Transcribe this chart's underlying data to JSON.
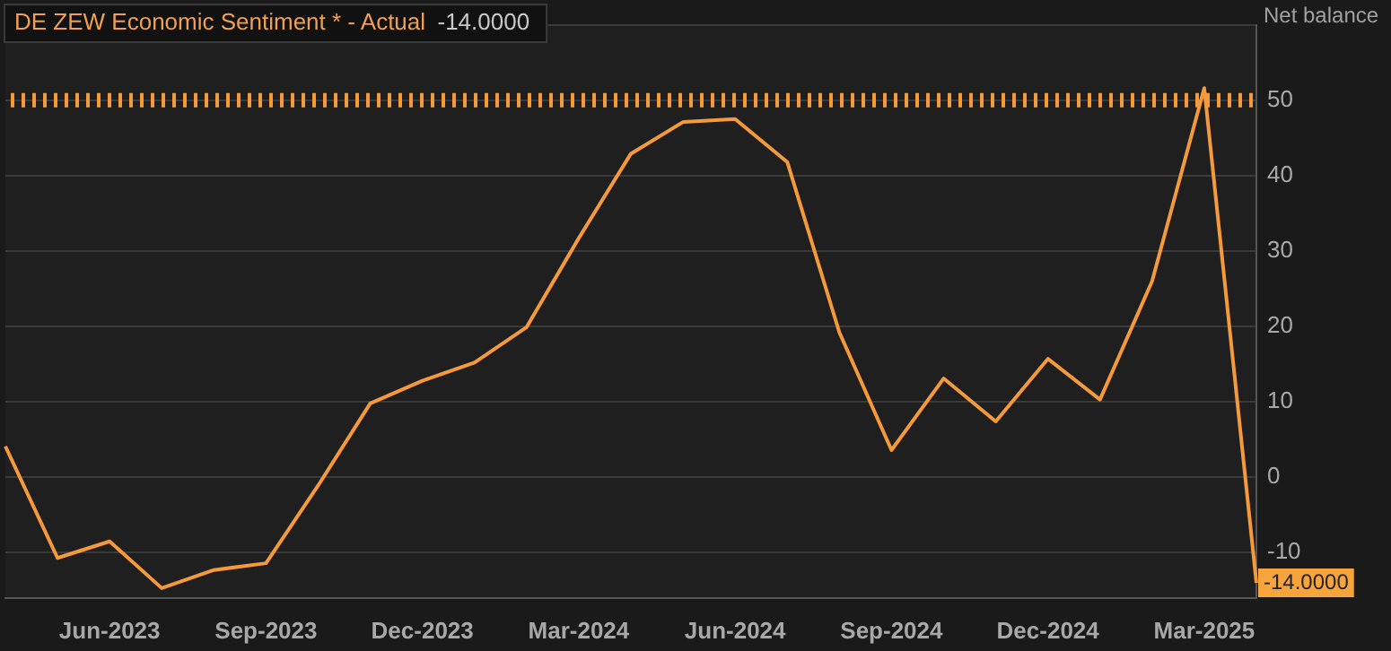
{
  "chart_data": {
    "type": "line",
    "title": "DE ZEW Economic Sentiment * - Actual",
    "subtitle": "-14.0000",
    "ylabel": "Net balance",
    "categories": [
      null,
      null,
      "Jun-2023",
      null,
      null,
      "Sep-2023",
      null,
      null,
      "Dec-2023",
      null,
      null,
      "Mar-2024",
      null,
      null,
      "Jun-2024",
      null,
      null,
      "Sep-2024",
      null,
      null,
      "Dec-2024",
      null,
      null,
      "Mar-2025",
      null
    ],
    "series": [
      {
        "color": "#f59a3a",
        "values": [
          4.1,
          -10.7,
          -8.5,
          -14.7,
          -12.3,
          -11.4,
          -1.1,
          9.8,
          12.8,
          15.2,
          19.9,
          31.7,
          42.9,
          47.1,
          47.5,
          41.8,
          19.2,
          3.6,
          13.1,
          7.4,
          15.7,
          10.3,
          26.0,
          51.6,
          -14.0
        ]
      }
    ],
    "ylim": [
      -16,
      60
    ],
    "yticks": [
      -10,
      0,
      10,
      20,
      30,
      40,
      50,
      {
        "value": 60,
        "label": null
      }
    ],
    "ref_lines": [
      {
        "axis": "y",
        "value": 50,
        "color": "#f59a3a",
        "line_style": "dotted"
      }
    ],
    "annotations": [
      "-14.0000"
    ],
    "grid": "y",
    "legend": false,
    "marker": "none",
    "line_style": "solid"
  }
}
